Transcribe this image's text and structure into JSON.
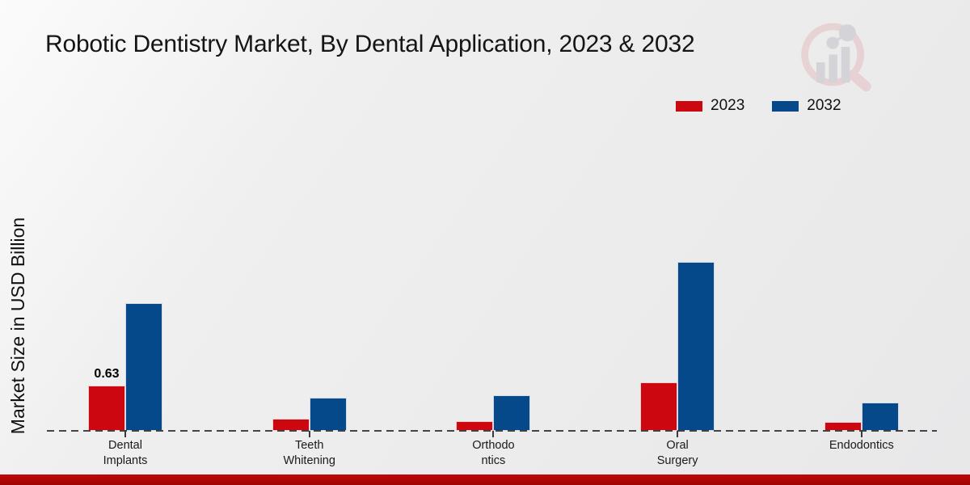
{
  "title": "Robotic Dentistry Market, By Dental Application, 2023 & 2032",
  "y_axis_label": "Market Size in USD Billion",
  "watermark_name": "market-research-future-logo",
  "legend": {
    "items": [
      {
        "label": "2023",
        "color": "#cc0710"
      },
      {
        "label": "2032",
        "color": "#05498a"
      }
    ]
  },
  "chart_data": {
    "type": "bar",
    "title": "Robotic Dentistry Market, By Dental Application, 2023 & 2032",
    "xlabel": "",
    "ylabel": "Market Size in USD Billion",
    "categories": [
      "Dental Implants",
      "Teeth Whitening",
      "Orthodontics",
      "Oral Surgery",
      "Endodontics"
    ],
    "category_display_lines": [
      [
        "Dental",
        "Implants"
      ],
      [
        "Teeth",
        "Whitening"
      ],
      [
        "Orthodo",
        "ntics"
      ],
      [
        "Oral",
        "Surgery"
      ],
      [
        "Endodontics"
      ]
    ],
    "series": [
      {
        "name": "2023",
        "color": "#cc0710",
        "values": [
          0.63,
          0.17,
          0.13,
          0.68,
          0.12
        ],
        "data_labels": [
          "0.63",
          null,
          null,
          null,
          null
        ]
      },
      {
        "name": "2032",
        "color": "#05498a",
        "values": [
          1.78,
          0.46,
          0.5,
          2.36,
          0.4
        ],
        "data_labels": [
          null,
          null,
          null,
          null,
          null
        ]
      }
    ],
    "ylim": [
      0,
      3.0
    ],
    "grid": false,
    "axis_ticks_visible": false,
    "legend_position": "top-right",
    "baseline_style": "dashed"
  }
}
